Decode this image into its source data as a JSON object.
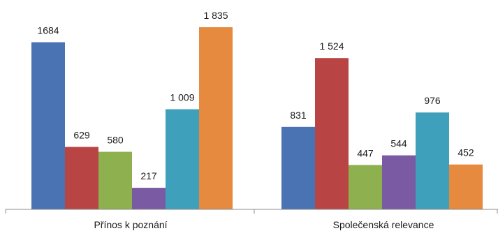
{
  "chart_data": {
    "type": "bar",
    "title": "",
    "xlabel": "",
    "ylabel": "",
    "ylim": [
      0,
      1900
    ],
    "grid": false,
    "legend": "none",
    "categories": [
      "Přínos k poznání",
      "Společenská relevance"
    ],
    "series": [
      {
        "color": "#4a73b3",
        "values": [
          1684,
          831
        ],
        "labels": [
          "1684",
          "831"
        ]
      },
      {
        "color": "#b84543",
        "values": [
          629,
          1524
        ],
        "labels": [
          "629",
          "1 524"
        ]
      },
      {
        "color": "#8fb04f",
        "values": [
          580,
          447
        ],
        "labels": [
          "580",
          "447"
        ]
      },
      {
        "color": "#7a5aa3",
        "values": [
          217,
          544
        ],
        "labels": [
          "217",
          "544"
        ]
      },
      {
        "color": "#3fa0bb",
        "values": [
          1009,
          976
        ],
        "labels": [
          "1 009",
          "976"
        ]
      },
      {
        "color": "#e58a3f",
        "values": [
          1835,
          452
        ],
        "labels": [
          "1 835",
          "452"
        ]
      }
    ]
  }
}
